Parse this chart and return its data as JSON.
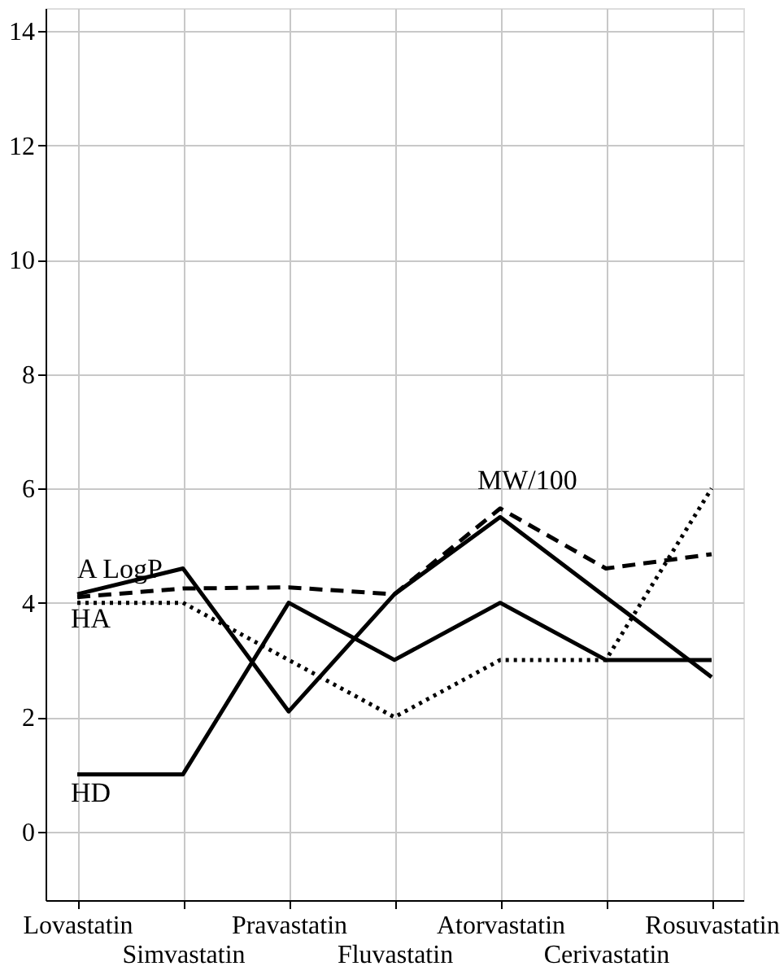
{
  "chart_data": {
    "type": "line",
    "categories": [
      "Lovastatin",
      "Simvastatin",
      "Pravastatin",
      "Fluvastatin",
      "Atorvastatin",
      "Cerivastatin",
      "Rosuvastatin"
    ],
    "series": [
      {
        "name": "A LogP",
        "color": "#000000",
        "line_style": "solid",
        "values": [
          4.15,
          4.6,
          2.1,
          4.15,
          5.5,
          4.1,
          2.7
        ]
      },
      {
        "name": "HD",
        "color": "#000000",
        "line_style": "solid",
        "values": [
          1,
          1,
          4,
          3,
          4,
          3,
          3
        ]
      },
      {
        "name": "HA",
        "color": "#000000",
        "line_style": "dotted",
        "values": [
          4,
          4,
          3,
          2,
          3,
          3,
          6
        ]
      },
      {
        "name": "MW/100",
        "color": "#000000",
        "line_style": "dashed",
        "values": [
          4.1,
          4.25,
          4.27,
          4.15,
          5.65,
          4.6,
          4.85
        ]
      }
    ],
    "ylim": [
      -1.2,
      14.4
    ],
    "yticks": [
      0,
      2,
      4,
      6,
      8,
      10,
      12,
      14
    ],
    "grid": true,
    "legend": false,
    "marker": "none"
  }
}
